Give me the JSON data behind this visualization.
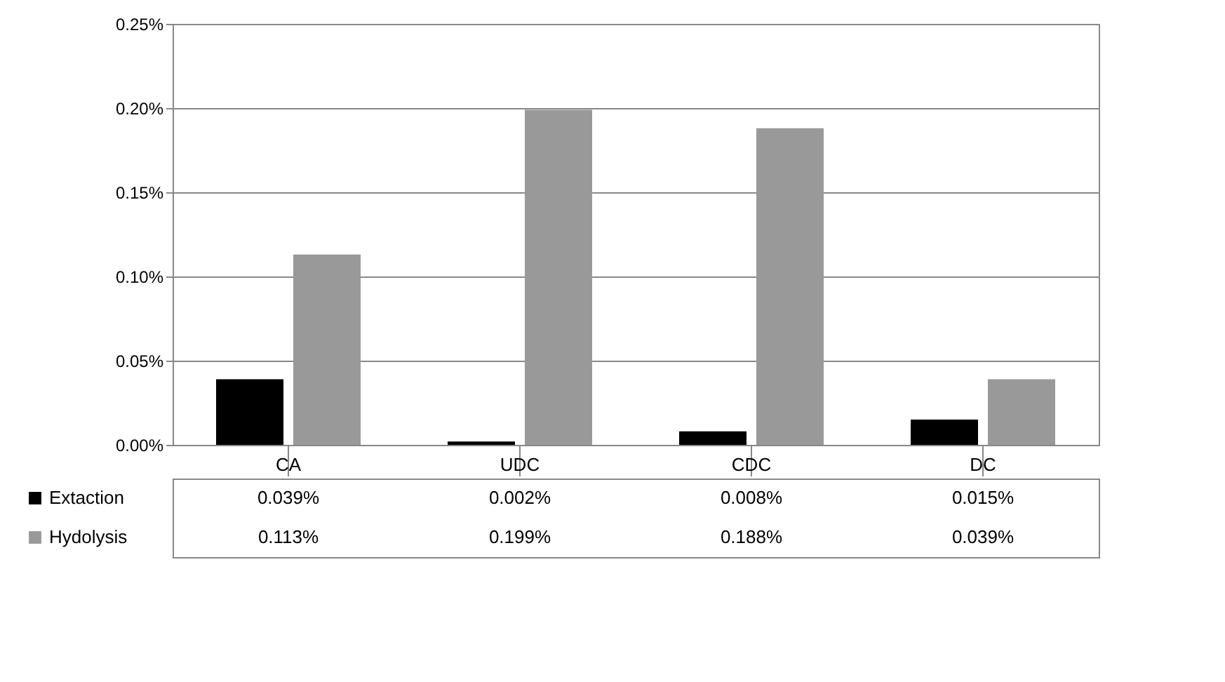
{
  "chart_data": {
    "type": "bar",
    "categories": [
      "CA",
      "UDC",
      "CDC",
      "DC"
    ],
    "series": [
      {
        "name": "Extaction",
        "color": "#000000",
        "values": [
          0.039,
          0.002,
          0.008,
          0.015
        ],
        "value_labels": [
          "0.039%",
          "0.002%",
          "0.008%",
          "0.015%"
        ]
      },
      {
        "name": "Hydolysis",
        "color": "#999999",
        "values": [
          0.113,
          0.199,
          0.188,
          0.039
        ],
        "value_labels": [
          "0.113%",
          "0.199%",
          "0.188%",
          "0.039%"
        ]
      }
    ],
    "ylim": [
      0,
      0.25
    ],
    "yticks": [
      {
        "value": 0,
        "label": "0.00%"
      },
      {
        "value": 0.05,
        "label": "0.05%"
      },
      {
        "value": 0.1,
        "label": "0.10%"
      },
      {
        "value": 0.15,
        "label": "0.15%"
      },
      {
        "value": 0.2,
        "label": "0.20%"
      },
      {
        "value": 0.25,
        "label": "0.25%"
      }
    ],
    "grid": "y",
    "legend": "bottom"
  }
}
